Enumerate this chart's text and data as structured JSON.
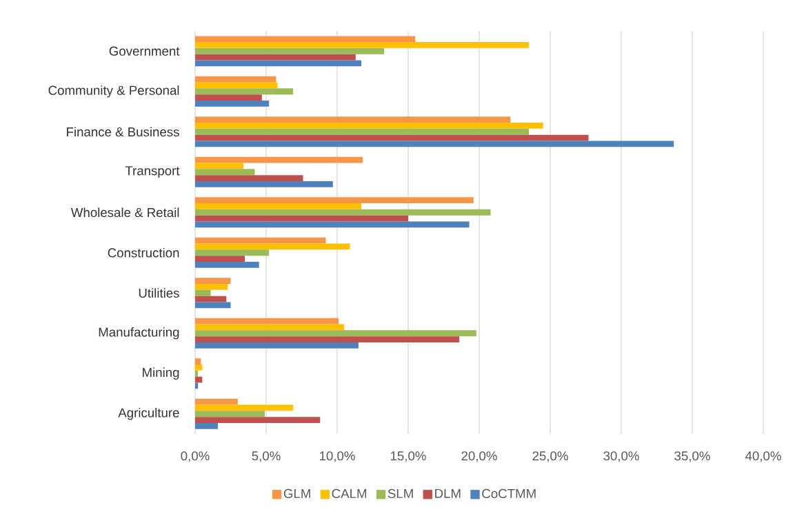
{
  "chart_data": {
    "type": "bar",
    "orientation": "horizontal",
    "categories": [
      "Government",
      "Community & Personal",
      "Finance & Business",
      "Transport",
      "Wholesale & Retail",
      "Construction",
      "Utilities",
      "Manufacturing",
      "Mining",
      "Agriculture"
    ],
    "series": [
      {
        "name": "GLM",
        "color": "#f79646",
        "values": [
          15.5,
          5.7,
          22.2,
          11.8,
          19.6,
          9.2,
          2.5,
          10.1,
          0.4,
          3.0
        ]
      },
      {
        "name": "CALM",
        "color": "#ffc000",
        "values": [
          23.5,
          5.8,
          24.5,
          3.4,
          11.7,
          10.9,
          2.3,
          10.5,
          0.5,
          6.9
        ]
      },
      {
        "name": "SLM",
        "color": "#9bbb59",
        "values": [
          13.3,
          6.9,
          23.5,
          4.2,
          20.8,
          5.2,
          1.1,
          19.8,
          0.2,
          4.9
        ]
      },
      {
        "name": "DLM",
        "color": "#c0504d",
        "values": [
          11.3,
          4.7,
          27.7,
          7.6,
          15.0,
          3.5,
          2.2,
          18.6,
          0.5,
          8.8
        ]
      },
      {
        "name": "CoCTMM",
        "color": "#4f81bd",
        "values": [
          11.7,
          5.2,
          33.7,
          9.7,
          19.3,
          4.5,
          2.5,
          11.5,
          0.2,
          1.6
        ]
      }
    ],
    "xlim": [
      0,
      40
    ],
    "xticks": [
      {
        "value": 0,
        "label": "0,0%"
      },
      {
        "value": 5,
        "label": "5,0%"
      },
      {
        "value": 10,
        "label": "10,0%"
      },
      {
        "value": 15,
        "label": "15,0%"
      },
      {
        "value": 20,
        "label": "20,0%"
      },
      {
        "value": 25,
        "label": "25,0%"
      },
      {
        "value": 30,
        "label": "30,0%"
      },
      {
        "value": 35,
        "label": "35,0%"
      },
      {
        "value": 40,
        "label": "40,0%"
      }
    ],
    "grid": "x",
    "legend": "bottom"
  }
}
